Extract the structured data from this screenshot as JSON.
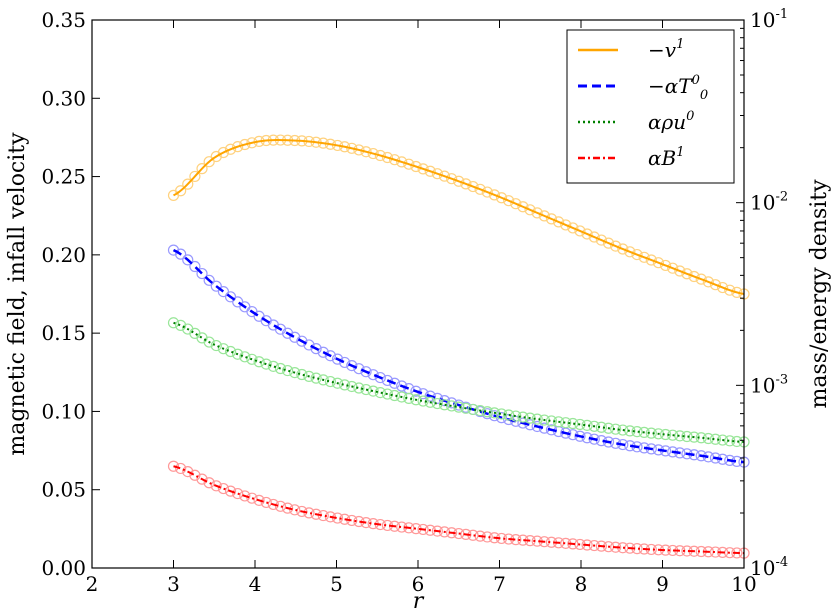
{
  "chart_data": {
    "type": "line",
    "title": "",
    "xlabel": "r",
    "ylabel_left": "magnetic field, infall velocity",
    "ylabel_right": "mass/energy density",
    "xlim": [
      2,
      10
    ],
    "ylim_left": [
      0.0,
      0.35
    ],
    "ylim_right": [
      0.0001,
      0.1
    ],
    "right_scale": "log",
    "grid": false,
    "legend_position": "top-right",
    "x_ticks": [
      "2",
      "3",
      "4",
      "5",
      "6",
      "7",
      "8",
      "9",
      "10"
    ],
    "y_left_ticks": [
      "0.00",
      "0.05",
      "0.10",
      "0.15",
      "0.20",
      "0.25",
      "0.30",
      "0.35"
    ],
    "y_right_ticks": [
      {
        "base": "10",
        "exp": "-4"
      },
      {
        "base": "10",
        "exp": "-3"
      },
      {
        "base": "10",
        "exp": "-2"
      },
      {
        "base": "10",
        "exp": "-1"
      }
    ],
    "x": [
      3.0,
      3.5,
      4.0,
      4.5,
      5.0,
      5.5,
      6.0,
      6.5,
      7.0,
      7.5,
      8.0,
      8.5,
      9.0,
      9.5,
      10.0
    ],
    "series": [
      {
        "legend_main": "−v",
        "legend_sup": "1",
        "legend_sub": "",
        "axis": "left",
        "color": "#ffa500",
        "marker_color": "#ffd27f",
        "dash": "",
        "width": 2,
        "values": [
          0.238,
          0.262,
          0.272,
          0.273,
          0.27,
          0.264,
          0.256,
          0.247,
          0.237,
          0.226,
          0.215,
          0.204,
          0.194,
          0.184,
          0.175
        ]
      },
      {
        "legend_main": "−αT",
        "legend_sup": "0",
        "legend_sub": "0",
        "axis": "right",
        "color": "#0000ff",
        "marker_color": "#9999ff",
        "dash": "9,5",
        "width": 2.5,
        "values": [
          0.0055,
          0.00356,
          0.00247,
          0.00182,
          0.0014,
          0.00112,
          0.00092,
          0.00078,
          0.00067,
          0.00059,
          0.000525,
          0.000475,
          0.00044,
          0.00041,
          0.00038
        ]
      },
      {
        "legend_main": "αρu",
        "legend_sup": "0",
        "legend_sub": "",
        "axis": "right",
        "color": "#008000",
        "marker_color": "#99e699",
        "dash": "2,3",
        "width": 2,
        "values": [
          0.0022,
          0.00167,
          0.00137,
          0.00117,
          0.00103,
          0.00092,
          0.00083,
          0.00076,
          0.0007,
          0.00065,
          0.00061,
          0.00057,
          0.00054,
          0.000515,
          0.00049
        ]
      },
      {
        "legend_main": "αB",
        "legend_sup": "1",
        "legend_sub": "",
        "axis": "left",
        "color": "#ff0000",
        "marker_color": "#ff9999",
        "dash": "7,3,2,3",
        "width": 2,
        "values": [
          0.065,
          0.053,
          0.044,
          0.037,
          0.032,
          0.028,
          0.025,
          0.022,
          0.019,
          0.017,
          0.015,
          0.013,
          0.0115,
          0.0105,
          0.0095
        ]
      }
    ]
  }
}
